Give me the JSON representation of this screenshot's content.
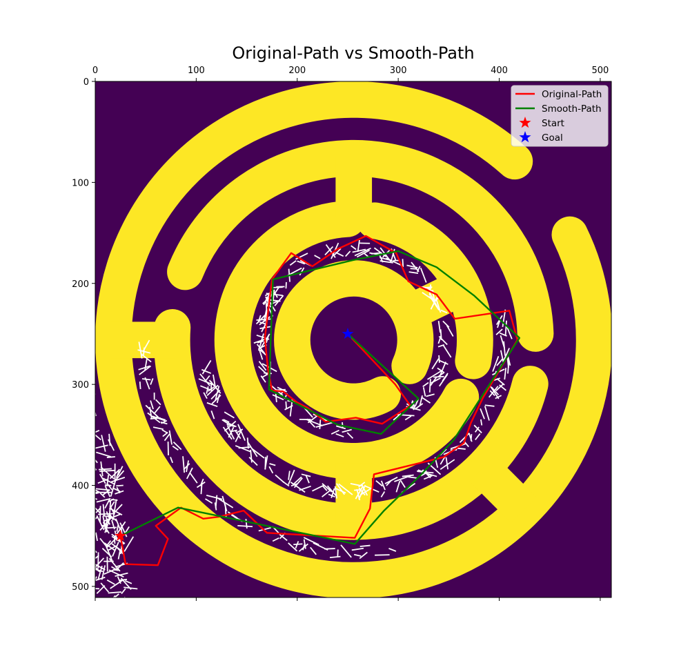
{
  "chart_data": {
    "type": "line",
    "title": "Original-Path vs Smooth-Path",
    "xlim": [
      0,
      511
    ],
    "ylim": [
      511,
      0
    ],
    "x_ticks": [
      0,
      100,
      200,
      300,
      400,
      500
    ],
    "y_ticks": [
      0,
      100,
      200,
      300,
      400,
      500
    ],
    "x_axis_position": "top",
    "y_axis_inverted": true,
    "legend_position": "top-right",
    "grid": false,
    "colors": {
      "background": "#440154",
      "walls": "#fde725",
      "tree": "#ffffff",
      "original": "#ff0000",
      "smooth": "#008000",
      "start": "#ff0000",
      "goal": "#0000ff"
    },
    "maze": {
      "center": [
        256,
        256
      ],
      "rings": [
        {
          "radius": 238,
          "gaps_deg": [
            [
              -48,
              -26
            ]
          ]
        },
        {
          "radius": 180,
          "gaps_deg": [
            [
              184,
              202
            ],
            [
              -2,
              14
            ]
          ]
        },
        {
          "radius": 120,
          "gaps_deg": [
            [
              -93,
              -80
            ],
            [
              10,
              28
            ]
          ]
        },
        {
          "radius": 61,
          "gaps_deg": [
            [
              25,
              62
            ]
          ]
        }
      ],
      "spokes": [
        {
          "angle": 180,
          "from_r": 177,
          "to_r": 240
        },
        {
          "angle": -90,
          "from_r": 122,
          "to_r": 181
        },
        {
          "angle": 90,
          "from_r": 122,
          "to_r": 181
        },
        {
          "angle": -26,
          "from_r": 61,
          "to_r": 121
        },
        {
          "angle": 45,
          "from_r": 180,
          "to_r": 238
        }
      ]
    },
    "series": [
      {
        "name": "Original-Path",
        "color": "#ff0000",
        "points": [
          [
            25,
            450
          ],
          [
            30,
            478
          ],
          [
            62,
            479
          ],
          [
            72,
            453
          ],
          [
            60,
            440
          ],
          [
            85,
            422
          ],
          [
            107,
            433
          ],
          [
            123,
            431
          ],
          [
            147,
            425
          ],
          [
            170,
            447
          ],
          [
            257,
            452
          ],
          [
            272,
            423
          ],
          [
            276,
            389
          ],
          [
            345,
            372
          ],
          [
            365,
            358
          ],
          [
            372,
            338
          ],
          [
            384,
            313
          ],
          [
            418,
            256
          ],
          [
            410,
            227
          ],
          [
            356,
            235
          ],
          [
            338,
            211
          ],
          [
            310,
            198
          ],
          [
            298,
            170
          ],
          [
            268,
            153
          ],
          [
            240,
            166
          ],
          [
            215,
            183
          ],
          [
            194,
            170
          ],
          [
            175,
            196
          ],
          [
            168,
            254
          ],
          [
            171,
            285
          ],
          [
            175,
            306
          ],
          [
            186,
            307
          ],
          [
            200,
            318
          ],
          [
            210,
            323
          ],
          [
            228,
            337
          ],
          [
            258,
            333
          ],
          [
            284,
            339
          ],
          [
            312,
            321
          ],
          [
            297,
            300
          ],
          [
            283,
            285
          ],
          [
            250,
            250
          ]
        ]
      },
      {
        "name": "Smooth-Path",
        "color": "#008000",
        "points": [
          [
            25,
            450
          ],
          [
            82,
            422
          ],
          [
            257,
            458
          ],
          [
            286,
            425
          ],
          [
            322,
            390
          ],
          [
            355,
            355
          ],
          [
            420,
            254
          ],
          [
            375,
            212
          ],
          [
            338,
            184
          ],
          [
            300,
            168
          ],
          [
            255,
            177
          ],
          [
            176,
            196
          ],
          [
            172,
            305
          ],
          [
            240,
            340
          ],
          [
            283,
            349
          ],
          [
            320,
            314
          ],
          [
            250,
            250
          ]
        ]
      }
    ],
    "markers": [
      {
        "name": "Start",
        "x": 25,
        "y": 450,
        "color": "#ff0000"
      },
      {
        "name": "Goal",
        "x": 250,
        "y": 250,
        "color": "#0000ff"
      }
    ]
  }
}
